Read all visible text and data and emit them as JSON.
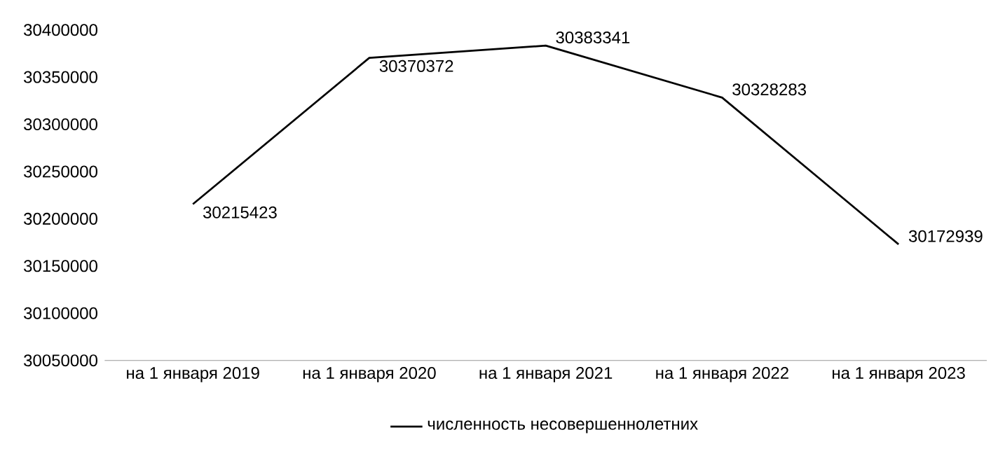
{
  "chart_data": {
    "type": "line",
    "categories": [
      "на 1 января 2019",
      "на 1 января 2020",
      "на 1 января 2021",
      "на 1 января 2022",
      "на 1 января 2023"
    ],
    "series": [
      {
        "name": "численность несовершеннолетних",
        "color": "#000000",
        "values": [
          30215423,
          30370372,
          30383341,
          30328283,
          30172939
        ]
      }
    ],
    "ylim": [
      30050000,
      30400000
    ],
    "yticks": [
      30050000,
      30100000,
      30150000,
      30200000,
      30250000,
      30300000,
      30350000,
      30400000
    ],
    "data_labels": true,
    "legend": "bottom",
    "grid": false,
    "marker": "none",
    "line_style": "solid"
  }
}
